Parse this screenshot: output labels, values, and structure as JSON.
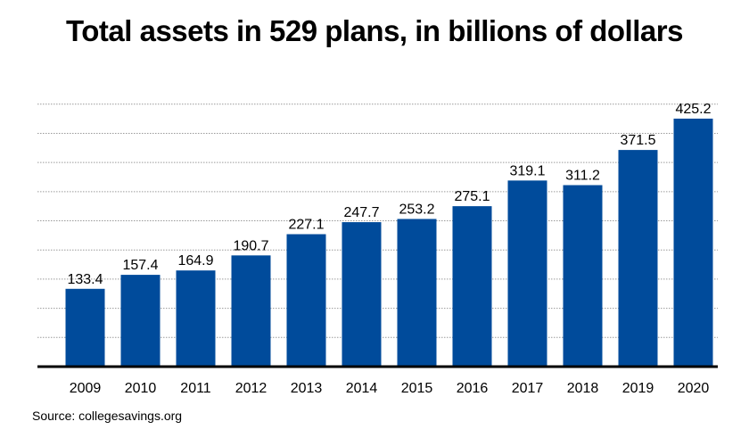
{
  "title": "Total assets in 529 plans, in billions of dollars",
  "source": "Source: collegesavings.org",
  "chart_data": {
    "type": "bar",
    "title": "Total assets in 529 plans, in billions of dollars",
    "categories": [
      "2009",
      "2010",
      "2011",
      "2012",
      "2013",
      "2014",
      "2015",
      "2016",
      "2017",
      "2018",
      "2019",
      "2020"
    ],
    "values": [
      133.4,
      157.4,
      164.9,
      190.7,
      227.1,
      247.7,
      253.2,
      275.1,
      319.1,
      311.2,
      371.5,
      425.2
    ],
    "value_labels": [
      "133.4",
      "157.4",
      "164.9",
      "190.7",
      "227.1",
      "247.7",
      "253.2",
      "275.1",
      "319.1",
      "311.2",
      "371.5",
      "425.2"
    ],
    "xlabel": "",
    "ylabel": "",
    "ylim": [
      0,
      450
    ],
    "grid": true,
    "bar_color": "#004b9b"
  }
}
